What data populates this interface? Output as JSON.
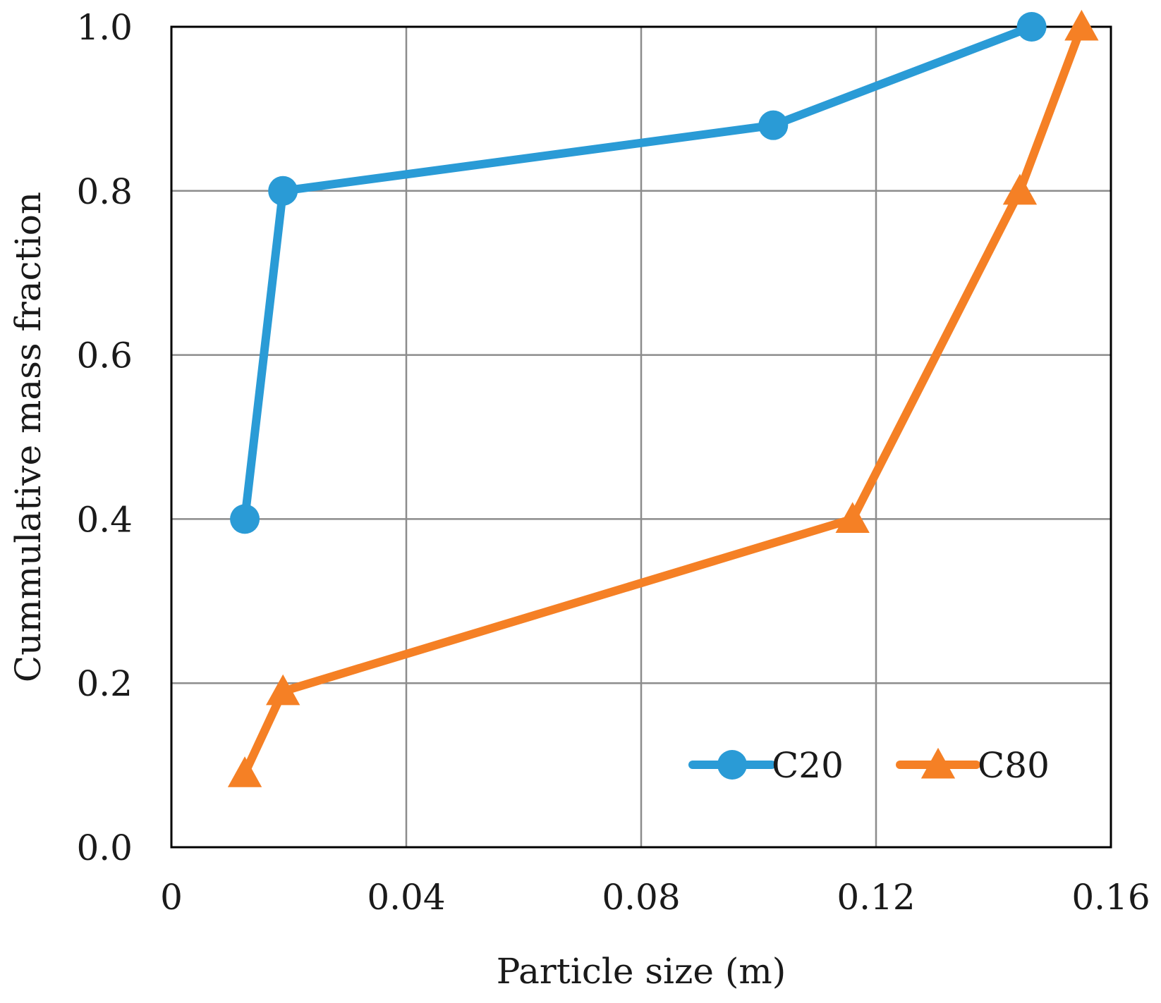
{
  "chart_data": {
    "type": "line",
    "title": "",
    "xlabel": "Particle size (m)",
    "ylabel": "Cummulative mass fraction",
    "xlim": [
      0,
      0.16
    ],
    "ylim": [
      0,
      1.0
    ],
    "xticks": [
      0,
      0.04,
      0.08,
      0.12,
      0.16
    ],
    "xtick_labels": [
      "0",
      "0.04",
      "0.08",
      "0.12",
      "0.16"
    ],
    "yticks": [
      0,
      0.2,
      0.4,
      0.6,
      0.8,
      1.0
    ],
    "ytick_labels": [
      "0.0",
      "0.2",
      "0.4",
      "0.6",
      "0.8",
      "1.0"
    ],
    "grid": true,
    "legend_position": "bottom-right",
    "series": [
      {
        "name": "C20",
        "color": "#2a9bd6",
        "marker": "circle",
        "x": [
          0.0125,
          0.019,
          0.1025,
          0.1465
        ],
        "y": [
          0.4,
          0.8,
          0.88,
          1.0
        ]
      },
      {
        "name": "C80",
        "color": "#f58025",
        "marker": "triangle",
        "x": [
          0.0125,
          0.019,
          0.116,
          0.1445,
          0.155
        ],
        "y": [
          0.09,
          0.19,
          0.4,
          0.8,
          1.0
        ]
      }
    ]
  }
}
